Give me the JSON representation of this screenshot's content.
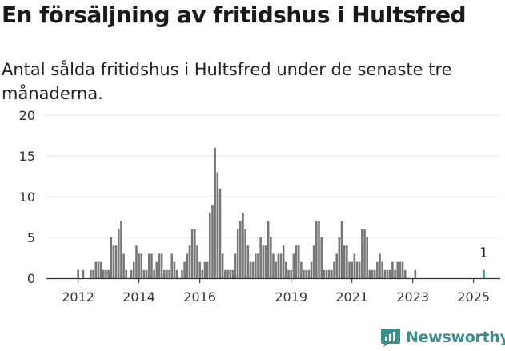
{
  "title": "En försäljning av fritidshus i Hultsfred",
  "subtitle": "Antal sålda fritidshus i Hultsfred under de senaste tre månaderna.",
  "brand": {
    "name": "Newsworthy",
    "icon": "newsworthy-logo-icon",
    "color": "#3c8f8d"
  },
  "chart_data": {
    "type": "bar",
    "x_start": "2011-01",
    "x_end": "2025-11",
    "ylim": [
      0,
      20
    ],
    "y_ticks": [
      0,
      5,
      10,
      15,
      20
    ],
    "x_ticks": [
      {
        "label": "2012",
        "month": "2012-01"
      },
      {
        "label": "2014",
        "month": "2014-01"
      },
      {
        "label": "2016",
        "month": "2016-01"
      },
      {
        "label": "2019",
        "month": "2019-01"
      },
      {
        "label": "2021",
        "month": "2021-01"
      },
      {
        "label": "2023",
        "month": "2023-01"
      },
      {
        "label": "2025",
        "month": "2025-01"
      }
    ],
    "grid": true,
    "bar_color": "#777777",
    "highlight_color": "#2a9d99",
    "series": [
      {
        "start": "2012-01",
        "values": [
          1,
          0,
          1,
          0,
          0,
          1,
          1,
          2,
          2,
          2,
          1,
          1,
          1,
          5,
          4,
          4,
          6,
          7,
          3,
          1,
          0,
          1,
          2,
          4,
          3,
          3,
          1,
          1,
          3,
          3,
          1,
          2,
          3,
          3,
          1,
          1,
          1,
          3,
          2,
          1,
          0,
          1,
          2,
          3,
          4,
          6,
          6,
          4,
          2,
          1,
          2,
          2,
          8,
          9,
          16,
          13,
          11,
          3,
          1,
          1,
          1,
          1,
          3,
          6,
          7,
          8,
          6,
          4,
          2,
          2,
          3,
          3,
          5,
          4,
          4,
          7,
          5,
          3,
          2,
          3,
          3,
          4,
          2,
          1,
          1,
          3,
          4,
          4,
          2,
          1,
          1,
          1,
          2,
          4,
          7,
          7,
          5,
          1,
          1,
          1,
          1,
          2,
          3,
          5,
          7,
          4,
          4,
          2,
          2,
          3,
          2,
          2,
          6,
          6,
          5,
          1,
          1,
          1,
          2,
          3,
          2,
          1,
          1,
          1,
          2,
          1,
          2,
          2,
          2,
          1,
          0,
          0,
          0,
          1,
          0,
          0,
          0,
          0,
          0
        ]
      }
    ],
    "highlight": {
      "month": "2025-05",
      "value": 1,
      "label": "1"
    }
  }
}
